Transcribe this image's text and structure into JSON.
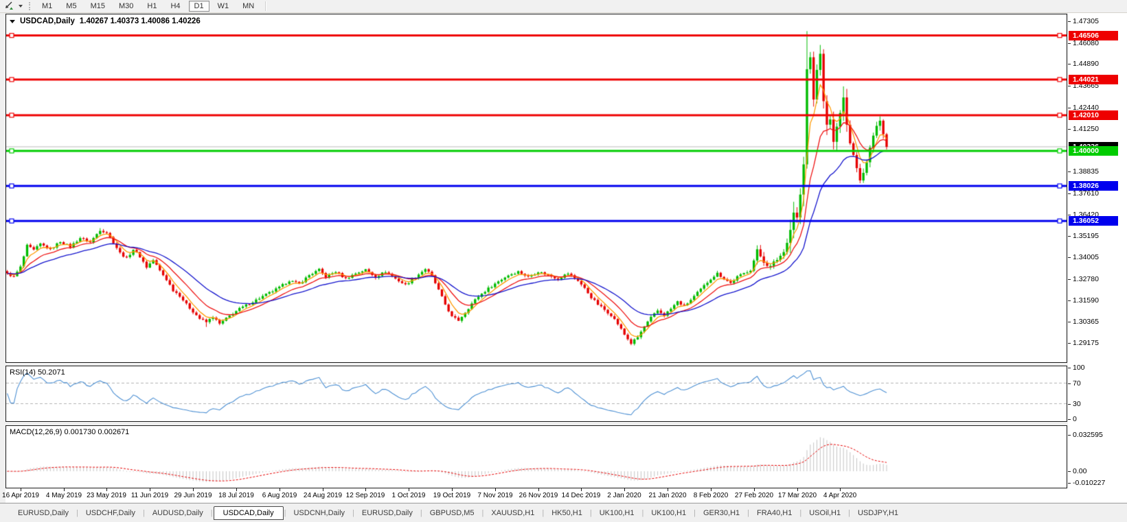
{
  "toolbar": {
    "timeframes": [
      "M1",
      "M5",
      "M15",
      "M30",
      "H1",
      "H4",
      "D1",
      "W1",
      "MN"
    ],
    "active_timeframe": "D1"
  },
  "chart": {
    "title": "USDCAD,Daily",
    "ohlc": "1.40267 1.40373 1.40086 1.40226"
  },
  "price_axis": {
    "tick_labels": [
      "1.47305",
      "1.46080",
      "1.44890",
      "1.43665",
      "1.42440",
      "1.41250",
      "1.38835",
      "1.37610",
      "1.36420",
      "1.35195",
      "1.34005",
      "1.32780",
      "1.31590",
      "1.30365",
      "1.29175"
    ]
  },
  "current_price": {
    "label": "1.40226",
    "value": 1.40226,
    "line_color": "#bcbcbc",
    "tag_color": "#000000"
  },
  "rsi": {
    "name": "RSI(14)",
    "value": "50.2071",
    "axis_values": [
      100,
      70,
      30,
      0
    ],
    "axis_labels": [
      "100",
      "70",
      "30",
      "0"
    ],
    "dashed_levels": [
      70,
      30
    ],
    "line_color": "#4a8ed2"
  },
  "macd": {
    "name": "MACD(12,26,9)",
    "values": "0.001730 0.002671",
    "axis_values": [
      0.032595,
      0,
      -0.010227
    ],
    "axis_labels": [
      "0.032595",
      "0.00",
      "-0.010227"
    ],
    "bar_color": "#c3c3c3",
    "signal_color": "#e60000"
  },
  "date_axis": [
    "16 Apr 2019",
    "4 May 2019",
    "23 May 2019",
    "11 Jun 2019",
    "29 Jun 2019",
    "18 Jul 2019",
    "6 Aug 2019",
    "24 Aug 2019",
    "12 Sep 2019",
    "1 Oct 2019",
    "19 Oct 2019",
    "7 Nov 2019",
    "26 Nov 2019",
    "14 Dec 2019",
    "2 Jan 2020",
    "21 Jan 2020",
    "8 Feb 2020",
    "27 Feb 2020",
    "17 Mar 2020",
    "4 Apr 2020"
  ],
  "tabs": {
    "items": [
      "EURUSD,Daily",
      "USDCHF,Daily",
      "AUDUSD,Daily",
      "USDCAD,Daily",
      "USDCNH,Daily",
      "EURUSD,Daily",
      "GBPUSD,M5",
      "XAUUSD,H1",
      "HK50,H1",
      "UK100,H1",
      "UK100,H1",
      "GER30,H1",
      "FRA40,H1",
      "USOil,H1",
      "USDJPY,H1"
    ],
    "active": "USDCAD,Daily"
  },
  "icons": {
    "tab_scroll_left": "◀",
    "tab_scroll_right": "▶"
  },
  "chart_data": {
    "type": "candlestick",
    "symbol": "USDCAD",
    "timeframe": "Daily",
    "current_bar": {
      "open": 1.40267,
      "high": 1.40373,
      "low": 1.40086,
      "close": 1.40226
    },
    "ylim": [
      1.28095,
      1.47692
    ],
    "n_candles": 266,
    "candle_spacing_px": 4.832,
    "up_color": "#00bb00",
    "down_color": "#e60000",
    "close_anchors": [
      [
        0,
        1.331
      ],
      [
        2,
        1.329
      ],
      [
        4,
        1.3345
      ],
      [
        6,
        1.3465
      ],
      [
        8,
        1.344
      ],
      [
        10,
        1.3475
      ],
      [
        13,
        1.3445
      ],
      [
        16,
        1.349
      ],
      [
        19,
        1.346
      ],
      [
        22,
        1.351
      ],
      [
        25,
        1.3485
      ],
      [
        28,
        1.3555
      ],
      [
        30,
        1.354
      ],
      [
        32,
        1.3485
      ],
      [
        34,
        1.3425
      ],
      [
        36,
        1.3395
      ],
      [
        38,
        1.3445
      ],
      [
        40,
        1.3405
      ],
      [
        42,
        1.3345
      ],
      [
        44,
        1.3385
      ],
      [
        46,
        1.3325
      ],
      [
        48,
        1.3275
      ],
      [
        50,
        1.3215
      ],
      [
        52,
        1.3185
      ],
      [
        54,
        1.3135
      ],
      [
        56,
        1.3095
      ],
      [
        58,
        1.3055
      ],
      [
        60,
        1.3035
      ],
      [
        62,
        1.3065
      ],
      [
        64,
        1.3025
      ],
      [
        66,
        1.3055
      ],
      [
        68,
        1.3085
      ],
      [
        70,
        1.311
      ],
      [
        73,
        1.314
      ],
      [
        76,
        1.317
      ],
      [
        79,
        1.32
      ],
      [
        82,
        1.323
      ],
      [
        85,
        1.327
      ],
      [
        88,
        1.325
      ],
      [
        91,
        1.33
      ],
      [
        94,
        1.333
      ],
      [
        96,
        1.329
      ],
      [
        99,
        1.332
      ],
      [
        102,
        1.328
      ],
      [
        105,
        1.331
      ],
      [
        108,
        1.333
      ],
      [
        111,
        1.329
      ],
      [
        114,
        1.332
      ],
      [
        117,
        1.328
      ],
      [
        120,
        1.3245
      ],
      [
        123,
        1.329
      ],
      [
        126,
        1.3335
      ],
      [
        128,
        1.3295
      ],
      [
        130,
        1.3215
      ],
      [
        132,
        1.3135
      ],
      [
        134,
        1.3065
      ],
      [
        136,
        1.3045
      ],
      [
        138,
        1.309
      ],
      [
        140,
        1.314
      ],
      [
        142,
        1.318
      ],
      [
        145,
        1.3225
      ],
      [
        148,
        1.3265
      ],
      [
        151,
        1.33
      ],
      [
        154,
        1.332
      ],
      [
        157,
        1.329
      ],
      [
        160,
        1.332
      ],
      [
        163,
        1.33
      ],
      [
        166,
        1.328
      ],
      [
        169,
        1.331
      ],
      [
        172,
        1.327
      ],
      [
        174,
        1.3225
      ],
      [
        176,
        1.3175
      ],
      [
        178,
        1.3135
      ],
      [
        180,
        1.3105
      ],
      [
        182,
        1.3075
      ],
      [
        184,
        1.3025
      ],
      [
        186,
        1.2965
      ],
      [
        188,
        1.2915
      ],
      [
        190,
        1.295
      ],
      [
        192,
        1.301
      ],
      [
        194,
        1.306
      ],
      [
        196,
        1.31
      ],
      [
        198,
        1.3075
      ],
      [
        200,
        1.311
      ],
      [
        202,
        1.315
      ],
      [
        204,
        1.3125
      ],
      [
        206,
        1.316
      ],
      [
        208,
        1.32
      ],
      [
        210,
        1.324
      ],
      [
        212,
        1.328
      ],
      [
        214,
        1.331
      ],
      [
        216,
        1.328
      ],
      [
        218,
        1.3255
      ],
      [
        220,
        1.329
      ],
      [
        222,
        1.331
      ],
      [
        224,
        1.333
      ],
      [
        226,
        1.3435
      ],
      [
        228,
        1.338
      ],
      [
        230,
        1.3345
      ],
      [
        232,
        1.339
      ],
      [
        234,
        1.343
      ],
      [
        236,
        1.356
      ],
      [
        237,
        1.3665
      ],
      [
        238,
        1.3615
      ],
      [
        239,
        1.3755
      ],
      [
        240,
        1.3905
      ],
      [
        241,
        1.4455
      ],
      [
        242,
        1.452
      ],
      [
        243,
        1.4285
      ],
      [
        244,
        1.448
      ],
      [
        245,
        1.4515
      ],
      [
        246,
        1.43
      ],
      [
        247,
        1.4125
      ],
      [
        248,
        1.421
      ],
      [
        249,
        1.4025
      ],
      [
        250,
        1.412
      ],
      [
        251,
        1.422
      ],
      [
        252,
        1.4265
      ],
      [
        253,
        1.418
      ],
      [
        254,
        1.406
      ],
      [
        255,
        1.398
      ],
      [
        256,
        1.39
      ],
      [
        257,
        1.385
      ],
      [
        258,
        1.388
      ],
      [
        259,
        1.395
      ],
      [
        260,
        1.403
      ],
      [
        261,
        1.41
      ],
      [
        262,
        1.415
      ],
      [
        263,
        1.417
      ],
      [
        264,
        1.409
      ],
      [
        265,
        1.40226
      ]
    ],
    "wick_overrides": [
      {
        "i": 28,
        "high": 1.3565
      },
      {
        "i": 60,
        "low": 1.3008
      },
      {
        "i": 136,
        "low": 1.3042
      },
      {
        "i": 188,
        "low": 1.2905
      },
      {
        "i": 226,
        "high": 1.3468
      },
      {
        "i": 241,
        "high": 1.4675
      },
      {
        "i": 257,
        "low": 1.3818
      }
    ],
    "volatility_zones": [
      {
        "from": 0,
        "to": 225,
        "v": 0.0016
      },
      {
        "from": 226,
        "to": 235,
        "v": 0.0035
      },
      {
        "from": 236,
        "to": 253,
        "v": 0.0095
      },
      {
        "from": 254,
        "to": 265,
        "v": 0.005
      }
    ],
    "moving_averages": [
      {
        "period": 5,
        "color": "#ff9900"
      },
      {
        "period": 12,
        "color": "#ee1111"
      },
      {
        "period": 26,
        "color": "#1111cc"
      }
    ],
    "levels": [
      {
        "price": 1.46506,
        "label": "1.46506",
        "color": "#ee0000"
      },
      {
        "price": 1.44021,
        "label": "1.44021",
        "color": "#ee0000"
      },
      {
        "price": 1.4201,
        "label": "1.42010",
        "color": "#ee0000"
      },
      {
        "price": 1.4,
        "label": "1.40000",
        "color": "#00cc00"
      },
      {
        "price": 1.38026,
        "label": "1.38026",
        "color": "#0000ee"
      },
      {
        "price": 1.36052,
        "label": "1.36052",
        "color": "#0000ee"
      }
    ],
    "xtick_candle_indices": [
      4,
      17,
      30,
      43,
      56,
      69,
      82,
      95,
      108,
      121,
      134,
      147,
      160,
      173,
      186,
      199,
      212,
      225,
      238,
      251
    ]
  }
}
